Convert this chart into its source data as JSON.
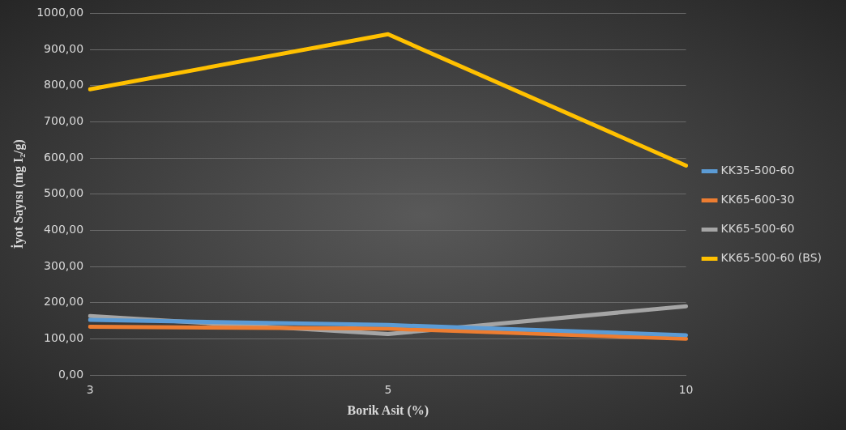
{
  "chart_data": {
    "type": "line",
    "xlabel": "Borik Asit (%)",
    "ylabel": "İyot Sayısı (mg I₂/g)",
    "categories": [
      "3",
      "5",
      "10"
    ],
    "series": [
      {
        "name": "KK35-500-60",
        "color": "#5b9bd5",
        "values": [
          152,
          138,
          110
        ]
      },
      {
        "name": "KK65-600-30",
        "color": "#ed7d31",
        "values": [
          133,
          128,
          100
        ]
      },
      {
        "name": "KK65-500-60",
        "color": "#a5a5a5",
        "values": [
          163,
          113,
          190
        ]
      },
      {
        "name": "KK65-500-60 (BS)",
        "color": "#ffc000",
        "values": [
          790,
          942,
          579
        ]
      }
    ],
    "ylim": [
      0,
      1000
    ],
    "yticks": [
      {
        "value": 0,
        "label": "0,00"
      },
      {
        "value": 100,
        "label": "100,00"
      },
      {
        "value": 200,
        "label": "200,00"
      },
      {
        "value": 300,
        "label": "300,00"
      },
      {
        "value": 400,
        "label": "400,00"
      },
      {
        "value": 500,
        "label": "500,00"
      },
      {
        "value": 600,
        "label": "600,00"
      },
      {
        "value": 700,
        "label": "700,00"
      },
      {
        "value": 800,
        "label": "800,00"
      },
      {
        "value": 900,
        "label": "900,00"
      },
      {
        "value": 1000,
        "label": "1000,00"
      }
    ],
    "grid": "y",
    "legend": "right",
    "marker": "none",
    "line_style": "solid"
  }
}
